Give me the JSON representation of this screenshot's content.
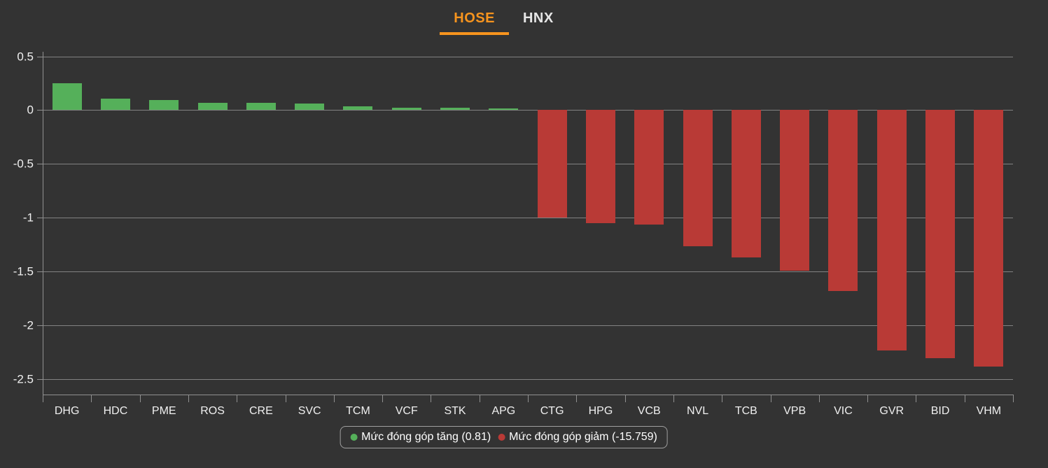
{
  "header": {
    "tabs": [
      {
        "label": "HOSE",
        "active": true
      },
      {
        "label": "HNX",
        "active": false
      }
    ]
  },
  "legend": {
    "increase_label": "Mức đóng góp tăng (0.81)",
    "decrease_label": "Mức đóng góp giảm (-15.759)"
  },
  "colors": {
    "background": "#333333",
    "accent_orange": "#f7941e",
    "positive_green": "#55b05a",
    "negative_red": "#b93a36",
    "gridline": "#828282",
    "axis": "#909090",
    "label_text": "#f0f0f0"
  },
  "chart_data": {
    "type": "bar",
    "title": "",
    "xlabel": "",
    "ylabel": "",
    "categories": [
      "DHG",
      "HDC",
      "PME",
      "ROS",
      "CRE",
      "SVC",
      "TCM",
      "VCF",
      "STK",
      "APG",
      "CTG",
      "HPG",
      "VCB",
      "NVL",
      "TCB",
      "VPB",
      "VIC",
      "GVR",
      "BID",
      "VHM"
    ],
    "values": [
      0.25,
      0.11,
      0.095,
      0.07,
      0.07,
      0.06,
      0.035,
      0.022,
      0.022,
      0.018,
      -1.0,
      -1.05,
      -1.06,
      -1.26,
      -1.37,
      -1.49,
      -1.68,
      -2.23,
      -2.3,
      -2.38
    ],
    "series": [
      {
        "name": "Mức đóng góp tăng",
        "total": 0.81,
        "color": "#55b05a"
      },
      {
        "name": "Mức đóng góp giảm",
        "total": -15.759,
        "color": "#b93a36"
      }
    ],
    "yticks": [
      0.5,
      0,
      -0.5,
      -1,
      -1.5,
      -2,
      -2.5
    ],
    "ytick_labels": [
      "0.5",
      "0",
      "-0.5",
      "-1",
      "-1.5",
      "-2",
      "-2.5"
    ],
    "ylim": [
      -2.64,
      0.5
    ],
    "grid": true,
    "legend_position": "bottom"
  }
}
